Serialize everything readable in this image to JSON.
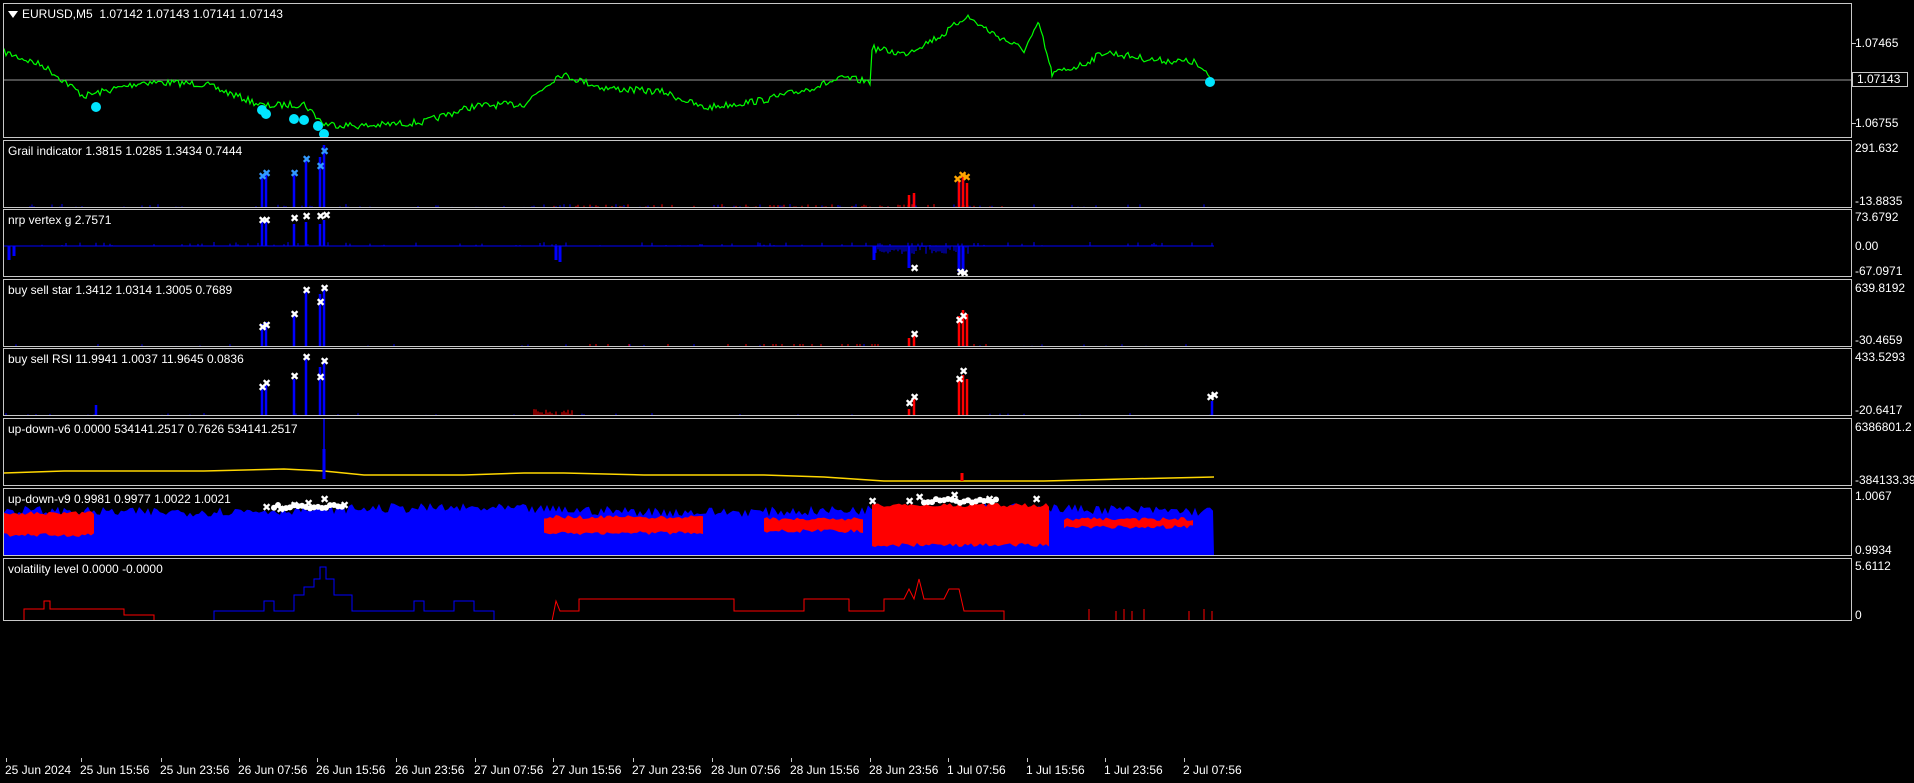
{
  "chart": {
    "symbol_title": "EURUSD,M5",
    "ohlc": "1.07142 1.07143 1.07141 1.07143",
    "current_price": "1.07143",
    "price_labels": [
      "1.07465",
      "1.07143",
      "1.06755"
    ],
    "line_color": "#00ff00",
    "marker_color": "#00e5ff"
  },
  "indicators": [
    {
      "title": "Grail indicator 1.3815 1.0285 1.3434 0.7444",
      "top_label": "291.632",
      "bottom_label": "-13.8835"
    },
    {
      "title": "nrp vertex g 2.7571",
      "top_label": "73.6792",
      "mid_label": "0.00",
      "bottom_label": "-67.0971"
    },
    {
      "title": "buy sell star 1.3412 1.0314 1.3005 0.7689",
      "top_label": "639.8192",
      "bottom_label": "-30.4659"
    },
    {
      "title": "buy sell RSI 11.9941 1.0037 11.9645 0.0836",
      "top_label": "433.5293",
      "bottom_label": "-20.6417"
    },
    {
      "title": "up-down-v6 0.0000 534141.2517 0.7626 534141.2517",
      "top_label": "6386801.2",
      "bottom_label": "-384133.39"
    },
    {
      "title": "up-down-v9 0.9981 0.9977 1.0022 1.0021",
      "top_label": "1.0067",
      "bottom_label": "0.9934"
    },
    {
      "title": "volatility level 0.0000 -0.0000",
      "top_label": "5.6112",
      "bottom_label": "0"
    }
  ],
  "time_axis": [
    "25 Jun 2024",
    "25 Jun 15:56",
    "25 Jun 23:56",
    "26 Jun 07:56",
    "26 Jun 15:56",
    "26 Jun 23:56",
    "27 Jun 07:56",
    "27 Jun 15:56",
    "27 Jun 23:56",
    "28 Jun 07:56",
    "28 Jun 15:56",
    "28 Jun 23:56",
    "1 Jul 07:56",
    "1 Jul 15:56",
    "1 Jul 23:56",
    "2 Jul 07:56"
  ],
  "colors": {
    "buy": "#0000ff",
    "sell": "#ff0000",
    "signal": "#ffffff",
    "highlight": "#ffa500",
    "ma": "#ffd700"
  }
}
